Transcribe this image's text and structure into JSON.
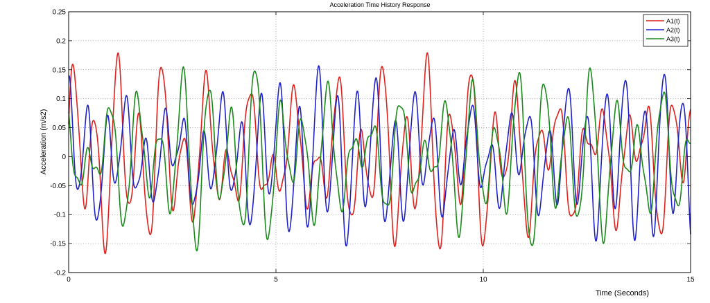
{
  "chart_data": {
    "type": "line",
    "title": "Acceleration Time History Response",
    "xlabel": "Time (Seconds)",
    "ylabel": "Acceleration (m/s2)",
    "xlim": [
      0,
      15
    ],
    "ylim": [
      -0.2,
      0.25
    ],
    "xticks": [
      0,
      5,
      10,
      15
    ],
    "xtick_labels": [
      "0",
      "5",
      "10",
      "15"
    ],
    "yticks": [
      -0.2,
      -0.15,
      -0.1,
      -0.05,
      0,
      0.05,
      0.1,
      0.15,
      0.2,
      0.25
    ],
    "ytick_labels": [
      "-0.2",
      "-0.15",
      "-0.1",
      "-0.05",
      "0",
      "0.05",
      "0.1",
      "0.15",
      "0.2",
      "0.25"
    ],
    "grid": true,
    "grid_style": "dotted",
    "legend_position": "top-right",
    "series": [
      {
        "name": "A1(t)",
        "color": "#e0201b",
        "amplitude": 0.12,
        "f1": 1.87,
        "f2": 0.31,
        "phase": 0.4,
        "mod": 0.06
      },
      {
        "name": "A2(t)",
        "color": "#1f22c8",
        "amplitude": 0.12,
        "f1": 2.16,
        "f2": 0.27,
        "phase": 1.6,
        "mod": 0.035
      },
      {
        "name": "A3(t)",
        "color": "#1a8a1a",
        "amplitude": 0.115,
        "f1": 1.73,
        "f2": 0.36,
        "phase": 2.8,
        "mod": 0.05
      }
    ]
  }
}
